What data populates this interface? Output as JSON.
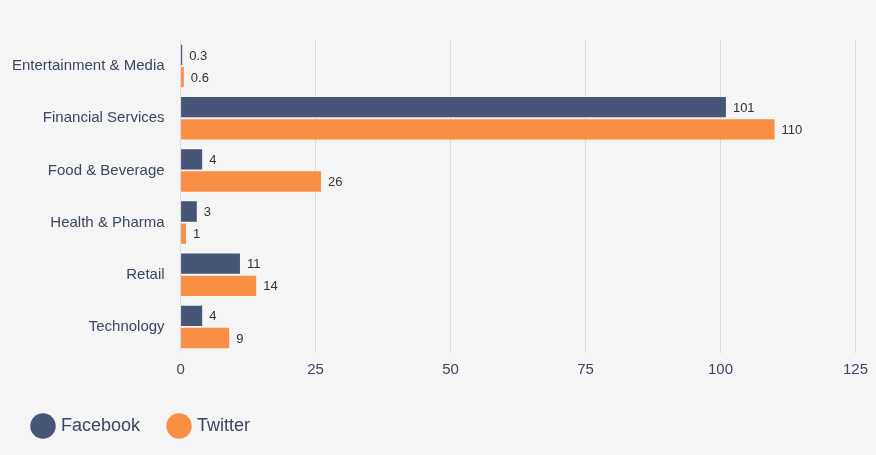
{
  "chart_data": {
    "type": "bar",
    "orientation": "horizontal",
    "categories": [
      "Entertainment & Media",
      "Financial Services",
      "Food & Beverage",
      "Health & Pharma",
      "Retail",
      "Technology"
    ],
    "series": [
      {
        "name": "Facebook",
        "color": "#475578",
        "values": [
          0.3,
          101,
          4,
          3,
          11,
          4
        ]
      },
      {
        "name": "Twitter",
        "color": "#f98e45",
        "values": [
          0.6,
          110,
          26,
          1,
          14,
          9
        ]
      }
    ],
    "xlim": [
      0,
      125
    ],
    "xticks": [
      0,
      25,
      50,
      75,
      100,
      125
    ],
    "grid": true,
    "legend": "bottom",
    "data_labels": true
  }
}
